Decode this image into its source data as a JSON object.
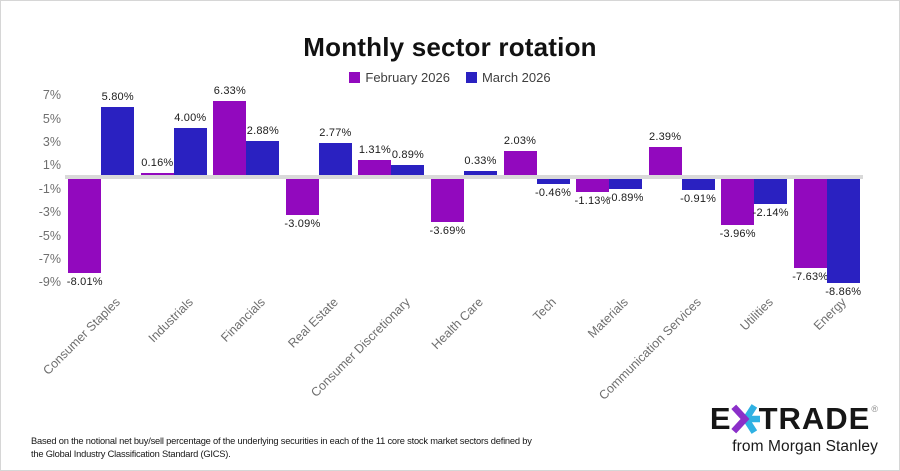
{
  "title": "Monthly sector rotation",
  "chart_data": {
    "type": "bar",
    "title": "Monthly sector rotation",
    "categories": [
      "Consumer Staples",
      "Industrials",
      "Financials",
      "Real Estate",
      "Consumer Discretionary",
      "Health Care",
      "Tech",
      "Materials",
      "Communication Services",
      "Utilities",
      "Energy"
    ],
    "series": [
      {
        "name": "February 2026",
        "color": "#9209BE",
        "values": [
          -8.01,
          0.16,
          6.33,
          -3.09,
          1.31,
          -3.69,
          2.03,
          -1.13,
          2.39,
          -3.96,
          -7.63
        ]
      },
      {
        "name": "March 2026",
        "color": "#2A21C1",
        "values": [
          5.8,
          4.0,
          2.88,
          2.77,
          0.89,
          0.33,
          -0.46,
          -0.89,
          -0.91,
          -2.14,
          -8.86
        ]
      }
    ],
    "value_labels": [
      [
        "-8.01%",
        "0.16%",
        "6.33%",
        "-3.09%",
        "1.31%",
        "-3.69%",
        "2.03%",
        "-1.13%",
        "2.39%",
        "-3.96%",
        "-7.63%"
      ],
      [
        "5.80%",
        "4.00%",
        "2.88%",
        "2.77%",
        "0.89%",
        "0.33%",
        "-0.46%",
        "-0.89%",
        "-0.91%",
        "-2.14%",
        "-8.86%"
      ]
    ],
    "y_ticks": [
      "7%",
      "5%",
      "3%",
      "1%",
      "-1%",
      "-3%",
      "-5%",
      "-7%",
      "-9%"
    ],
    "y_tick_values": [
      7,
      5,
      3,
      1,
      -1,
      -3,
      -5,
      -7,
      -9
    ],
    "ylim": [
      -9.5,
      7.5
    ],
    "grid": false,
    "legend_position": "top",
    "zero_line_color": "#d9d9d9"
  },
  "footnote": {
    "line1": "Based on the notional net buy/sell percentage of the underlying securities in each of the 11 core stock market sectors defined by",
    "line2": "the Global Industry Classification Standard (GICS)."
  },
  "logo": {
    "e": "E",
    "trade": "TRADE",
    "registered": "®",
    "tagline": "from Morgan Stanley",
    "purple": "#8B2FC9",
    "teal": "#2FB1E3"
  }
}
